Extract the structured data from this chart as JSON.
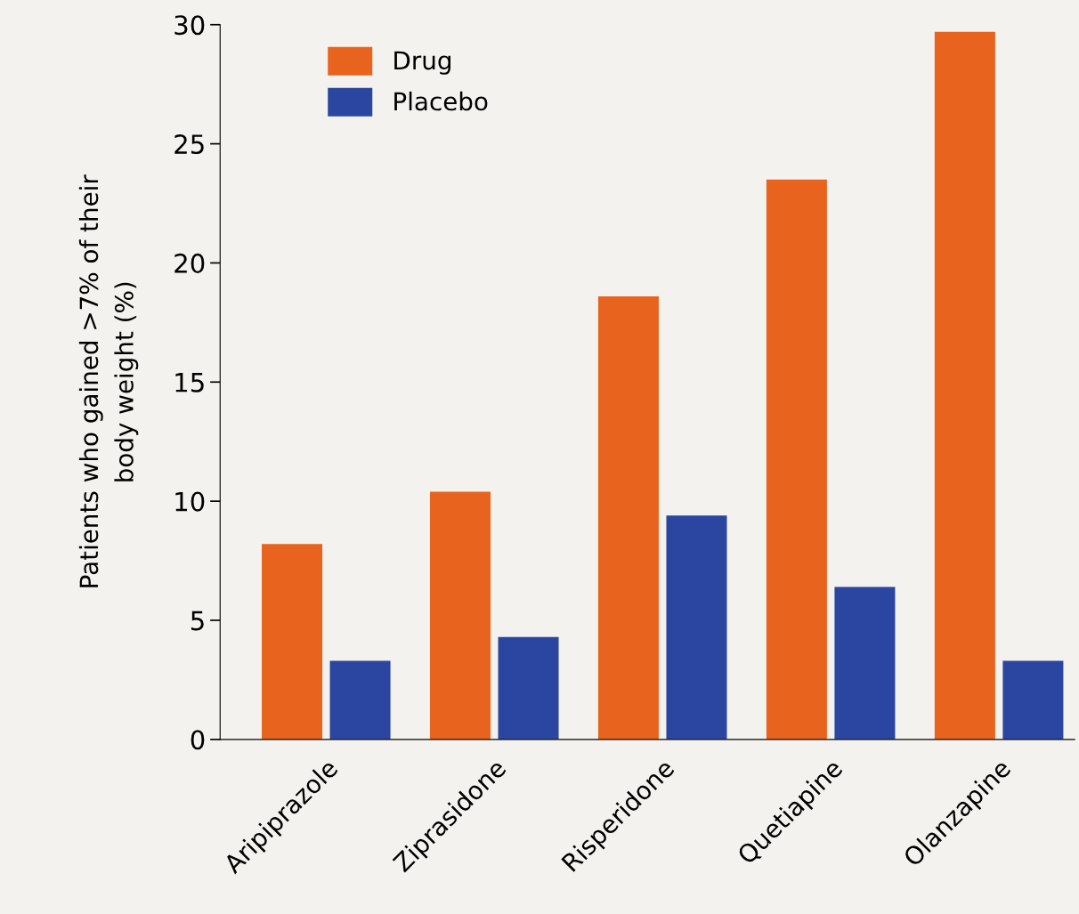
{
  "chart_data": {
    "type": "bar",
    "ylabel": "Patients who gained >7% of their\nbody weight (%)",
    "categories": [
      "Aripiprazole",
      "Ziprasidone",
      "Risperidone",
      "Quetiapine",
      "Olanzapine"
    ],
    "series": [
      {
        "name": "Drug",
        "color": "#e8641e",
        "values": [
          8.2,
          10.4,
          18.6,
          23.5,
          29.7
        ]
      },
      {
        "name": "Placebo",
        "color": "#2a46a0",
        "values": [
          3.3,
          4.3,
          9.4,
          6.4,
          3.3
        ]
      }
    ],
    "ylim": [
      0,
      30
    ],
    "yticks": [
      0,
      5,
      10,
      15,
      20,
      25,
      30
    ],
    "grid": false,
    "legend": "top left"
  }
}
